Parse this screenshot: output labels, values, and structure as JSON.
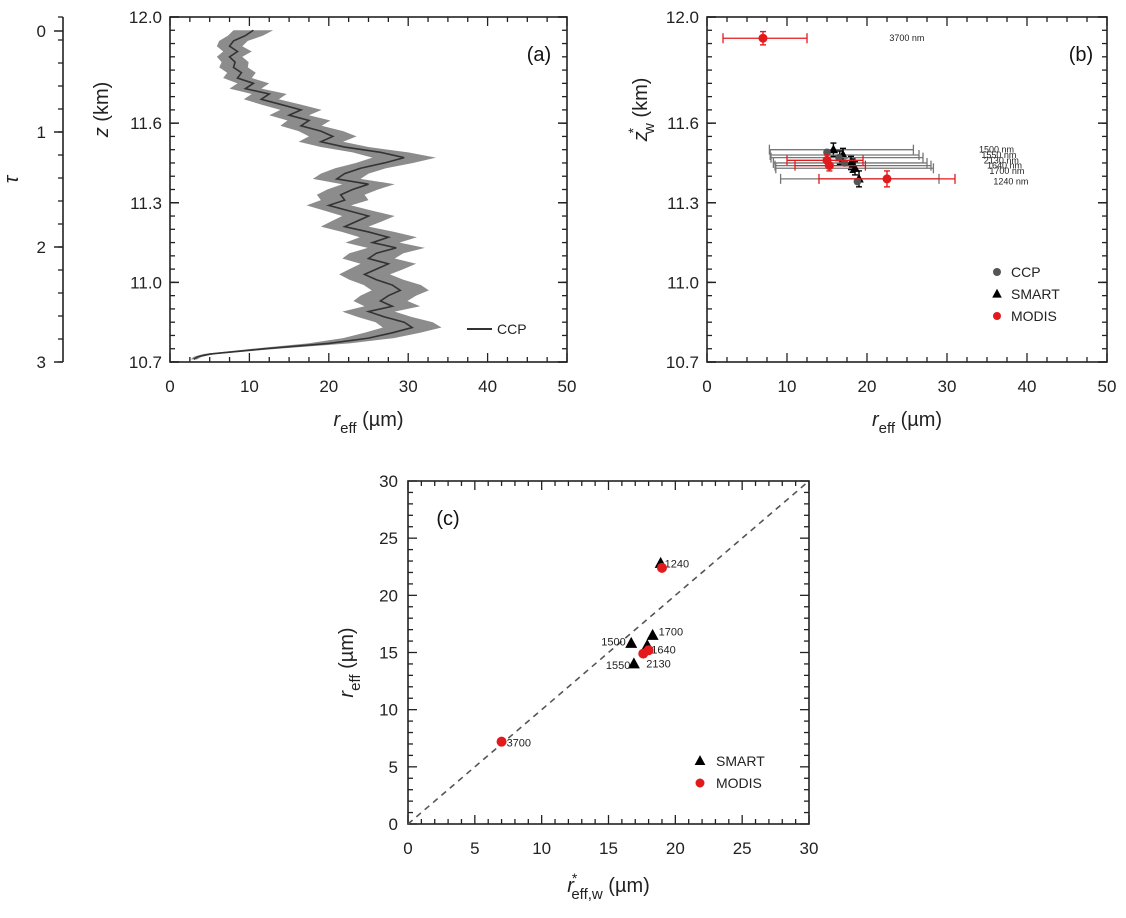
{
  "colors": {
    "axis": "#222222",
    "profile_line": "#333333",
    "profile_band": "#8c8c8c",
    "ccp": "#555555",
    "smart": "#000000",
    "modis": "#e31a1c",
    "error_grey": "#777777",
    "dashed": "#555555"
  },
  "chart_data": [
    {
      "panel": "(a)",
      "type": "line",
      "xlabel": {
        "main": "r",
        "sub": "eff",
        "unit": " (µm)"
      },
      "ylabel": {
        "main": "z",
        "unit": " (km)"
      },
      "ylabel_left": "τ",
      "xlim": [
        0,
        50
      ],
      "ylim": [
        10.7,
        12.0
      ],
      "tau_lim": [
        0,
        3
      ],
      "x_ticks": [
        "0",
        "10",
        "20",
        "30",
        "40",
        "50"
      ],
      "y_ticks": [
        "10.7",
        "11.0",
        "11.3",
        "11.6",
        "12.0"
      ],
      "tau_ticks": [
        "0",
        "1",
        "2",
        "3"
      ],
      "legend": [
        {
          "label": "CCP",
          "symbol": "line"
        }
      ],
      "series": [
        {
          "name": "CCP",
          "z": [
            11.95,
            11.93,
            11.91,
            11.89,
            11.87,
            11.85,
            11.83,
            11.81,
            11.79,
            11.77,
            11.75,
            11.73,
            11.71,
            11.69,
            11.67,
            11.65,
            11.63,
            11.61,
            11.59,
            11.57,
            11.55,
            11.53,
            11.51,
            11.49,
            11.47,
            11.45,
            11.43,
            11.41,
            11.39,
            11.37,
            11.35,
            11.33,
            11.31,
            11.29,
            11.27,
            11.25,
            11.23,
            11.21,
            11.19,
            11.17,
            11.15,
            11.13,
            11.11,
            11.09,
            11.07,
            11.05,
            11.03,
            11.01,
            10.99,
            10.97,
            10.95,
            10.93,
            10.91,
            10.89,
            10.87,
            10.85,
            10.83,
            10.81,
            10.79,
            10.77,
            10.75,
            10.73,
            10.72,
            10.71
          ],
          "r_eff": [
            10.5,
            9.5,
            8.0,
            7.5,
            8.5,
            7.5,
            8.2,
            8.0,
            9.0,
            8.5,
            10.5,
            9.5,
            12.5,
            11.5,
            14.0,
            16.5,
            15.0,
            17.5,
            16.5,
            19.0,
            20.5,
            19.0,
            22.0,
            26.5,
            29.5,
            27.0,
            24.0,
            22.0,
            21.0,
            25.0,
            23.0,
            21.5,
            22.0,
            20.0,
            22.5,
            25.0,
            23.5,
            22.0,
            25.0,
            27.5,
            25.5,
            28.5,
            26.0,
            25.0,
            27.5,
            26.0,
            24.5,
            26.0,
            28.0,
            29.0,
            27.5,
            26.5,
            28.0,
            25.0,
            27.0,
            29.5,
            30.5,
            28.0,
            25.0,
            20.0,
            12.0,
            5.0,
            3.5,
            3.0
          ],
          "half_width": [
            2.5,
            2.2,
            1.8,
            1.6,
            1.8,
            1.6,
            1.7,
            1.8,
            1.8,
            1.8,
            2.0,
            2.0,
            2.2,
            2.2,
            2.5,
            2.6,
            2.5,
            2.7,
            2.6,
            2.8,
            3.0,
            2.8,
            3.0,
            3.5,
            4.0,
            3.6,
            3.2,
            3.0,
            3.0,
            3.3,
            3.2,
            3.0,
            3.0,
            2.8,
            3.0,
            3.3,
            3.2,
            3.0,
            3.3,
            3.6,
            3.4,
            3.6,
            3.4,
            3.3,
            3.5,
            3.4,
            3.2,
            3.4,
            3.6,
            3.6,
            3.5,
            3.4,
            3.5,
            3.3,
            3.4,
            3.6,
            3.7,
            3.5,
            3.2,
            2.6,
            1.6,
            0.8,
            0.5,
            0.4
          ]
        }
      ]
    },
    {
      "panel": "(b)",
      "type": "scatter",
      "xlabel": {
        "main": "r",
        "sub": "eff",
        "unit": " (µm)"
      },
      "ylabel": {
        "main": "z",
        "sub": "w",
        "sup": "*",
        "unit": " (km)"
      },
      "xlim": [
        0,
        50
      ],
      "ylim": [
        10.7,
        12.0
      ],
      "x_ticks": [
        "0",
        "10",
        "20",
        "30",
        "40",
        "50"
      ],
      "y_ticks": [
        "10.7",
        "11.0",
        "11.3",
        "11.6",
        "12.0"
      ],
      "legend": [
        {
          "label": "CCP",
          "symbol": "circle",
          "color": "#555555"
        },
        {
          "label": "SMART",
          "symbol": "triangle",
          "color": "#000000"
        },
        {
          "label": "MODIS",
          "symbol": "circle",
          "color": "#e31a1c"
        }
      ],
      "series": [
        {
          "name": "SMART",
          "points": [
            {
              "x": 15.8,
              "y": 11.5,
              "xerr": [
                7.8,
                25.8
              ],
              "yerr": 0.025
            },
            {
              "x": 17.0,
              "y": 11.48,
              "xerr": [
                7.9,
                26.5
              ],
              "yerr": 0.025
            },
            {
              "x": 16.6,
              "y": 11.47,
              "xerr": [
                8.0,
                27.0
              ],
              "yerr": 0.025
            },
            {
              "x": 18.0,
              "y": 11.45,
              "xerr": [
                8.3,
                27.5
              ],
              "yerr": 0.025
            },
            {
              "x": 18.2,
              "y": 11.44,
              "xerr": [
                8.5,
                28.0
              ],
              "yerr": 0.025
            },
            {
              "x": 18.5,
              "y": 11.43,
              "xerr": [
                8.6,
                28.3
              ],
              "yerr": 0.025
            },
            {
              "x": 19.0,
              "y": 11.39,
              "xerr": [
                9.2,
                29.0
              ],
              "yerr": 0.03
            }
          ]
        },
        {
          "name": "CCP",
          "points": [
            {
              "x": 15.0,
              "y": 11.49
            },
            {
              "x": 16.5,
              "y": 11.47
            },
            {
              "x": 17.2,
              "y": 11.45
            },
            {
              "x": 18.8,
              "y": 11.38
            }
          ]
        },
        {
          "name": "MODIS",
          "points": [
            {
              "x": 7.0,
              "y": 11.92,
              "xerr": [
                2.0,
                12.5
              ],
              "yerr": 0.025
            },
            {
              "x": 15.0,
              "y": 11.46,
              "xerr": [
                10.0,
                19.5
              ],
              "yerr": 0.02
            },
            {
              "x": 15.3,
              "y": 11.44,
              "xerr": [
                11.0,
                19.8
              ],
              "yerr": 0.02
            },
            {
              "x": 22.5,
              "y": 11.39,
              "xerr": [
                14.0,
                31.0
              ],
              "yerr": 0.03
            }
          ]
        }
      ],
      "annotations": [
        {
          "text": "3700 nm",
          "x": 22.8,
          "y": 11.92
        },
        {
          "text": "1500 nm",
          "x": 34.0,
          "y": 11.5
        },
        {
          "text": "1550 nm",
          "x": 34.3,
          "y": 11.48
        },
        {
          "text": "2130 nm",
          "x": 34.6,
          "y": 11.46
        },
        {
          "text": "1640 nm",
          "x": 35.0,
          "y": 11.44
        },
        {
          "text": "1700 nm",
          "x": 35.3,
          "y": 11.42
        },
        {
          "text": "1240 nm",
          "x": 35.8,
          "y": 11.38
        }
      ]
    },
    {
      "panel": "(c)",
      "type": "scatter",
      "xlabel": {
        "main": "r",
        "sub": "eff,w",
        "sup": "*",
        "unit": " (µm)"
      },
      "ylabel": {
        "main": "r",
        "sub": "eff",
        "unit": " (µm)"
      },
      "xlim": [
        0,
        30
      ],
      "ylim": [
        0,
        30
      ],
      "x_ticks": [
        "0",
        "5",
        "10",
        "15",
        "20",
        "25",
        "30"
      ],
      "y_ticks": [
        "0",
        "5",
        "10",
        "15",
        "20",
        "25",
        "30"
      ],
      "legend": [
        {
          "label": "SMART",
          "symbol": "triangle",
          "color": "#000000"
        },
        {
          "label": "MODIS",
          "symbol": "circle",
          "color": "#e31a1c"
        }
      ],
      "series": [
        {
          "name": "SMART",
          "points": [
            {
              "x": 18.9,
              "y": 22.8,
              "label": "1240"
            },
            {
              "x": 18.3,
              "y": 16.5,
              "label": "1700"
            },
            {
              "x": 16.7,
              "y": 15.8,
              "label": "1500"
            },
            {
              "x": 17.9,
              "y": 15.6,
              "label": "1640"
            },
            {
              "x": 16.9,
              "y": 14.0,
              "label": "1550"
            }
          ]
        },
        {
          "name": "MODIS",
          "points": [
            {
              "x": 19.0,
              "y": 22.4
            },
            {
              "x": 18.0,
              "y": 15.2
            },
            {
              "x": 17.6,
              "y": 14.9,
              "label": "2130"
            },
            {
              "x": 7.0,
              "y": 7.2,
              "label": "3700"
            }
          ]
        }
      ]
    }
  ]
}
